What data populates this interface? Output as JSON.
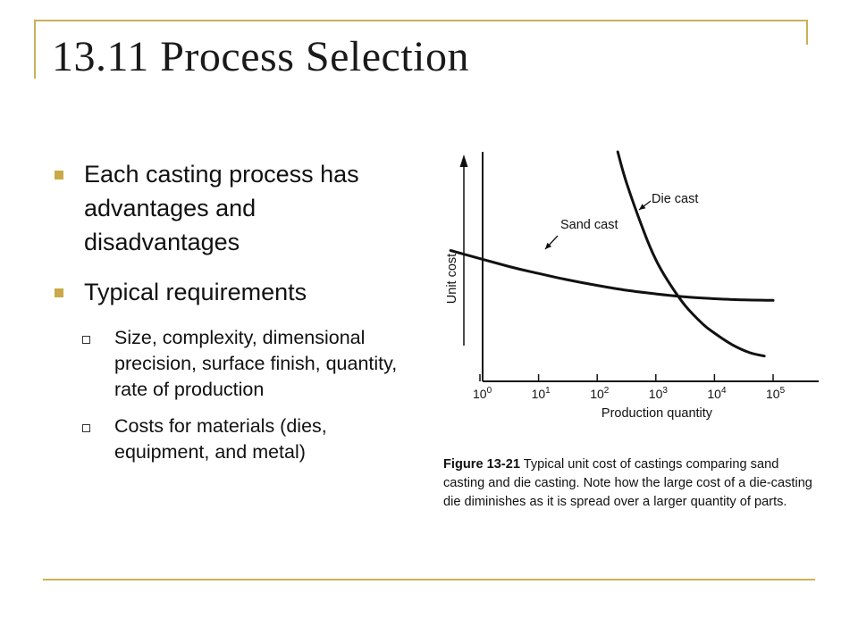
{
  "title": "13.11 Process Selection",
  "bullets": [
    {
      "text": "Each casting process has advantages and disadvantages",
      "sub": []
    },
    {
      "text": "Typical requirements",
      "sub": [
        "Size, complexity, dimensional precision, surface finish, quantity, rate of production",
        "Costs for materials (dies, equipment, and metal)"
      ]
    }
  ],
  "caption": {
    "label": "Figure 13-21",
    "text": " Typical unit cost of castings comparing sand casting and die casting. Note how the large cost of a die-casting die diminishes as it is spread over a larger quantity of parts."
  },
  "colors": {
    "frame": "#c9b15a",
    "bullet": "#c9a948",
    "curve": "#111111"
  },
  "chart_data": {
    "type": "line",
    "xlabel": "Production quantity",
    "ylabel": "Unit cost",
    "xscale": "log",
    "xlim": [
      0,
      5
    ],
    "x_ticks": [
      {
        "v": 0,
        "base": "10",
        "exp": "0"
      },
      {
        "v": 1,
        "base": "10",
        "exp": "1"
      },
      {
        "v": 2,
        "base": "10",
        "exp": "2"
      },
      {
        "v": 3,
        "base": "10",
        "exp": "3"
      },
      {
        "v": 4,
        "base": "10",
        "exp": "4"
      },
      {
        "v": 5,
        "base": "10",
        "exp": "5"
      }
    ],
    "y_values_printed": false,
    "ylim": [
      0,
      10
    ],
    "series": [
      {
        "name": "Sand cast",
        "x": [
          -0.5,
          0.5,
          1.0,
          1.5,
          2.0,
          2.5,
          3.0,
          3.5,
          4.0,
          4.5,
          5.0
        ],
        "y": [
          5.7,
          5.0,
          4.7,
          4.42,
          4.18,
          3.97,
          3.81,
          3.68,
          3.6,
          3.55,
          3.53
        ]
      },
      {
        "name": "Die cast",
        "x": [
          2.35,
          2.5,
          2.8,
          3.0,
          3.2,
          3.5,
          3.8,
          4.0,
          4.3,
          4.6,
          4.85
        ],
        "y": [
          10.0,
          8.65,
          6.5,
          5.3,
          4.4,
          3.3,
          2.5,
          2.1,
          1.6,
          1.25,
          1.1
        ]
      }
    ],
    "annotations": [
      {
        "text": "Sand cast",
        "series": "Sand cast"
      },
      {
        "text": "Die cast",
        "series": "Die cast"
      }
    ]
  }
}
